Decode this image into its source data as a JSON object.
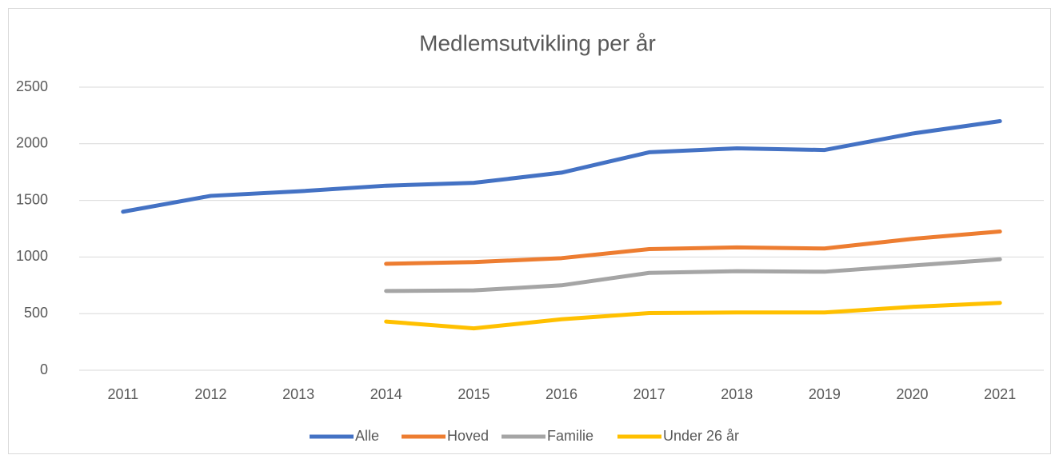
{
  "chart_data": {
    "type": "line",
    "title": "Medlemsutvikling per år",
    "categories": [
      "2011",
      "2012",
      "2013",
      "2014",
      "2015",
      "2016",
      "2017",
      "2018",
      "2019",
      "2020",
      "2021"
    ],
    "series": [
      {
        "name": "Alle",
        "color": "#4472c4",
        "values": [
          1400,
          1540,
          1580,
          1630,
          1655,
          1745,
          1925,
          1960,
          1945,
          2090,
          2200
        ]
      },
      {
        "name": "Hoved",
        "color": "#ed7d31",
        "values": [
          null,
          null,
          null,
          940,
          955,
          990,
          1070,
          1085,
          1075,
          1160,
          1225
        ]
      },
      {
        "name": "Familie",
        "color": "#a5a5a5",
        "values": [
          null,
          null,
          null,
          700,
          705,
          750,
          860,
          875,
          870,
          925,
          980
        ]
      },
      {
        "name": "Under 26 år",
        "color": "#ffc000",
        "values": [
          null,
          null,
          null,
          430,
          370,
          450,
          505,
          510,
          510,
          560,
          595
        ]
      }
    ],
    "ylim": [
      0,
      2500
    ],
    "yticks": [
      0,
      500,
      1000,
      1500,
      2000,
      2500
    ],
    "grid": true,
    "legend": "bottom"
  }
}
